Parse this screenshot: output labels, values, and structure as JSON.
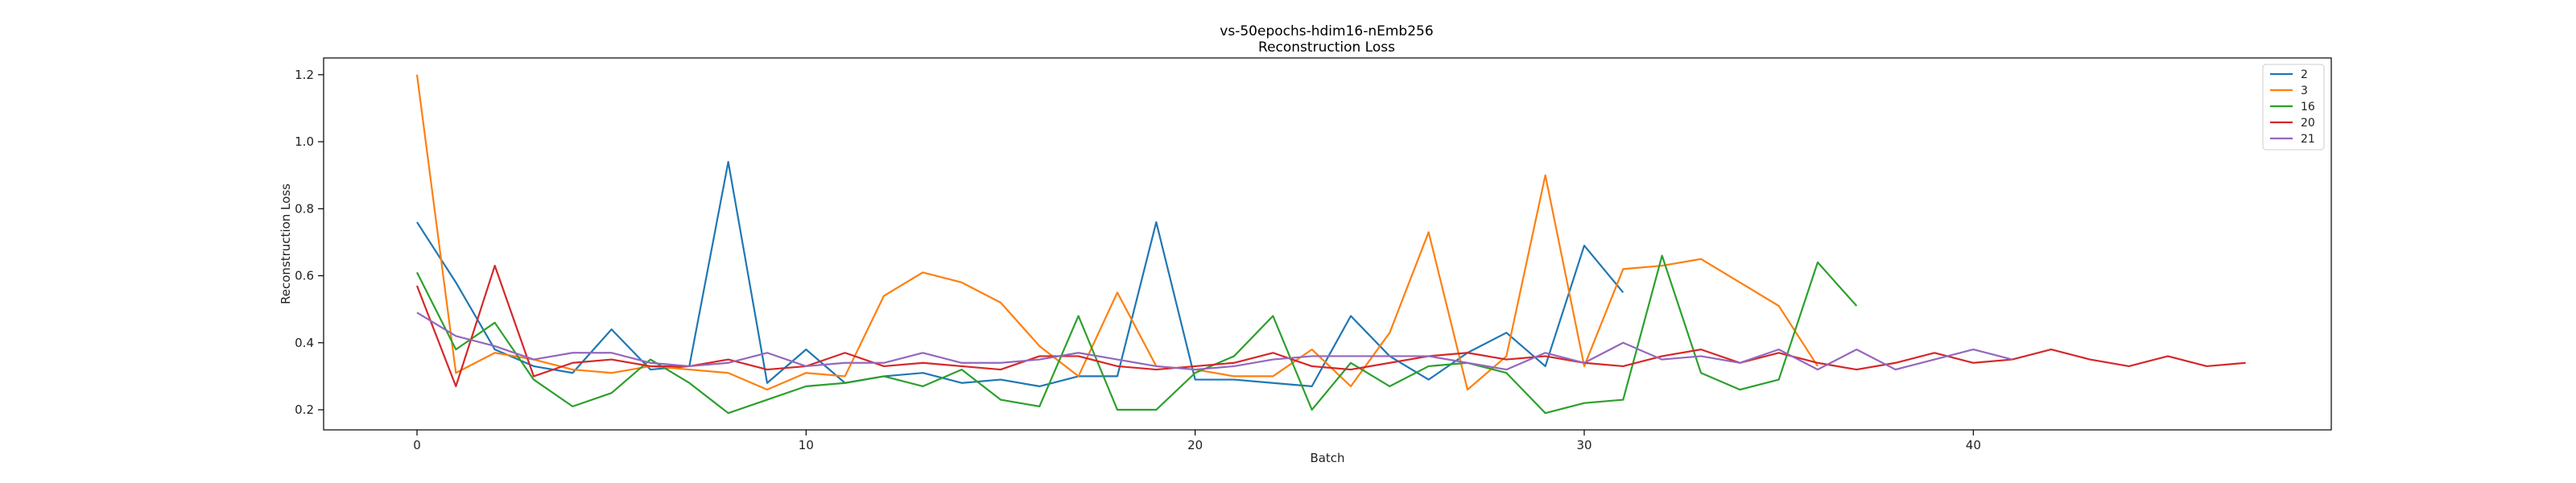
{
  "chart_data": {
    "type": "line",
    "title": "vs-50epochs-hdim16-nEmb256",
    "subtitle": "Reconstruction Loss",
    "xlabel": "Batch",
    "ylabel": "Reconstruction Loss",
    "xlim": [
      -2.4,
      49.2
    ],
    "ylim": [
      0.14,
      1.25
    ],
    "xticks": [
      0,
      10,
      20,
      30,
      40
    ],
    "yticks": [
      0.2,
      0.4,
      0.6,
      0.8,
      1.0,
      1.2
    ],
    "xtick_labels": [
      "0",
      "10",
      "20",
      "30",
      "40"
    ],
    "ytick_labels": [
      "0.2",
      "0.4",
      "0.6",
      "0.8",
      "1.0",
      "1.2"
    ],
    "grid": false,
    "legend_position": "top-right",
    "series": [
      {
        "name": "2",
        "color": "#1f77b4",
        "values": [
          0.76,
          0.58,
          0.38,
          0.33,
          0.31,
          0.44,
          0.32,
          0.33,
          0.94,
          0.28,
          0.38,
          0.28,
          0.3,
          0.31,
          0.28,
          0.29,
          0.27,
          0.3,
          0.3,
          0.76,
          0.29,
          0.29,
          0.28,
          0.27,
          0.48,
          0.36,
          0.29,
          0.37,
          0.43,
          0.33,
          0.69,
          0.55
        ]
      },
      {
        "name": "3",
        "color": "#ff7f0e",
        "values": [
          1.2,
          0.31,
          0.37,
          0.35,
          0.32,
          0.31,
          0.33,
          0.32,
          0.31,
          0.26,
          0.31,
          0.3,
          0.54,
          0.61,
          0.58,
          0.52,
          0.39,
          0.3,
          0.55,
          0.33,
          0.32,
          0.3,
          0.3,
          0.38,
          0.27,
          0.43,
          0.73,
          0.26,
          0.36,
          0.9,
          0.33,
          0.62,
          0.63,
          0.65,
          0.58,
          0.51,
          0.33
        ]
      },
      {
        "name": "16",
        "color": "#2ca02c",
        "values": [
          0.61,
          0.38,
          0.46,
          0.29,
          0.21,
          0.25,
          0.35,
          0.28,
          0.19,
          0.23,
          0.27,
          0.28,
          0.3,
          0.27,
          0.32,
          0.23,
          0.21,
          0.48,
          0.2,
          0.2,
          0.31,
          0.36,
          0.48,
          0.2,
          0.34,
          0.27,
          0.33,
          0.34,
          0.31,
          0.19,
          0.22,
          0.23,
          0.66,
          0.31,
          0.26,
          0.29,
          0.64,
          0.51
        ]
      },
      {
        "name": "20",
        "color": "#d62728",
        "values": [
          0.57,
          0.27,
          0.63,
          0.3,
          0.34,
          0.35,
          0.33,
          0.33,
          0.35,
          0.32,
          0.33,
          0.37,
          0.33,
          0.34,
          0.33,
          0.32,
          0.36,
          0.36,
          0.33,
          0.32,
          0.33,
          0.34,
          0.37,
          0.33,
          0.32,
          0.34,
          0.36,
          0.37,
          0.35,
          0.36,
          0.34,
          0.33,
          0.36,
          0.38,
          0.34,
          0.37,
          0.34,
          0.32,
          0.34,
          0.37,
          0.34,
          0.35,
          0.38,
          0.35,
          0.33,
          0.36,
          0.33,
          0.34
        ]
      },
      {
        "name": "21",
        "color": "#9467bd",
        "values": [
          0.49,
          0.42,
          0.39,
          0.35,
          0.37,
          0.37,
          0.34,
          0.33,
          0.34,
          0.37,
          0.33,
          0.34,
          0.34,
          0.37,
          0.34,
          0.34,
          0.35,
          0.37,
          0.35,
          0.33,
          0.32,
          0.33,
          0.35,
          0.36,
          0.36,
          0.36,
          0.36,
          0.34,
          0.32,
          0.37,
          0.34,
          0.4,
          0.35,
          0.36,
          0.34,
          0.38,
          0.32,
          0.38,
          0.32,
          0.35,
          0.38,
          0.35
        ]
      }
    ]
  }
}
